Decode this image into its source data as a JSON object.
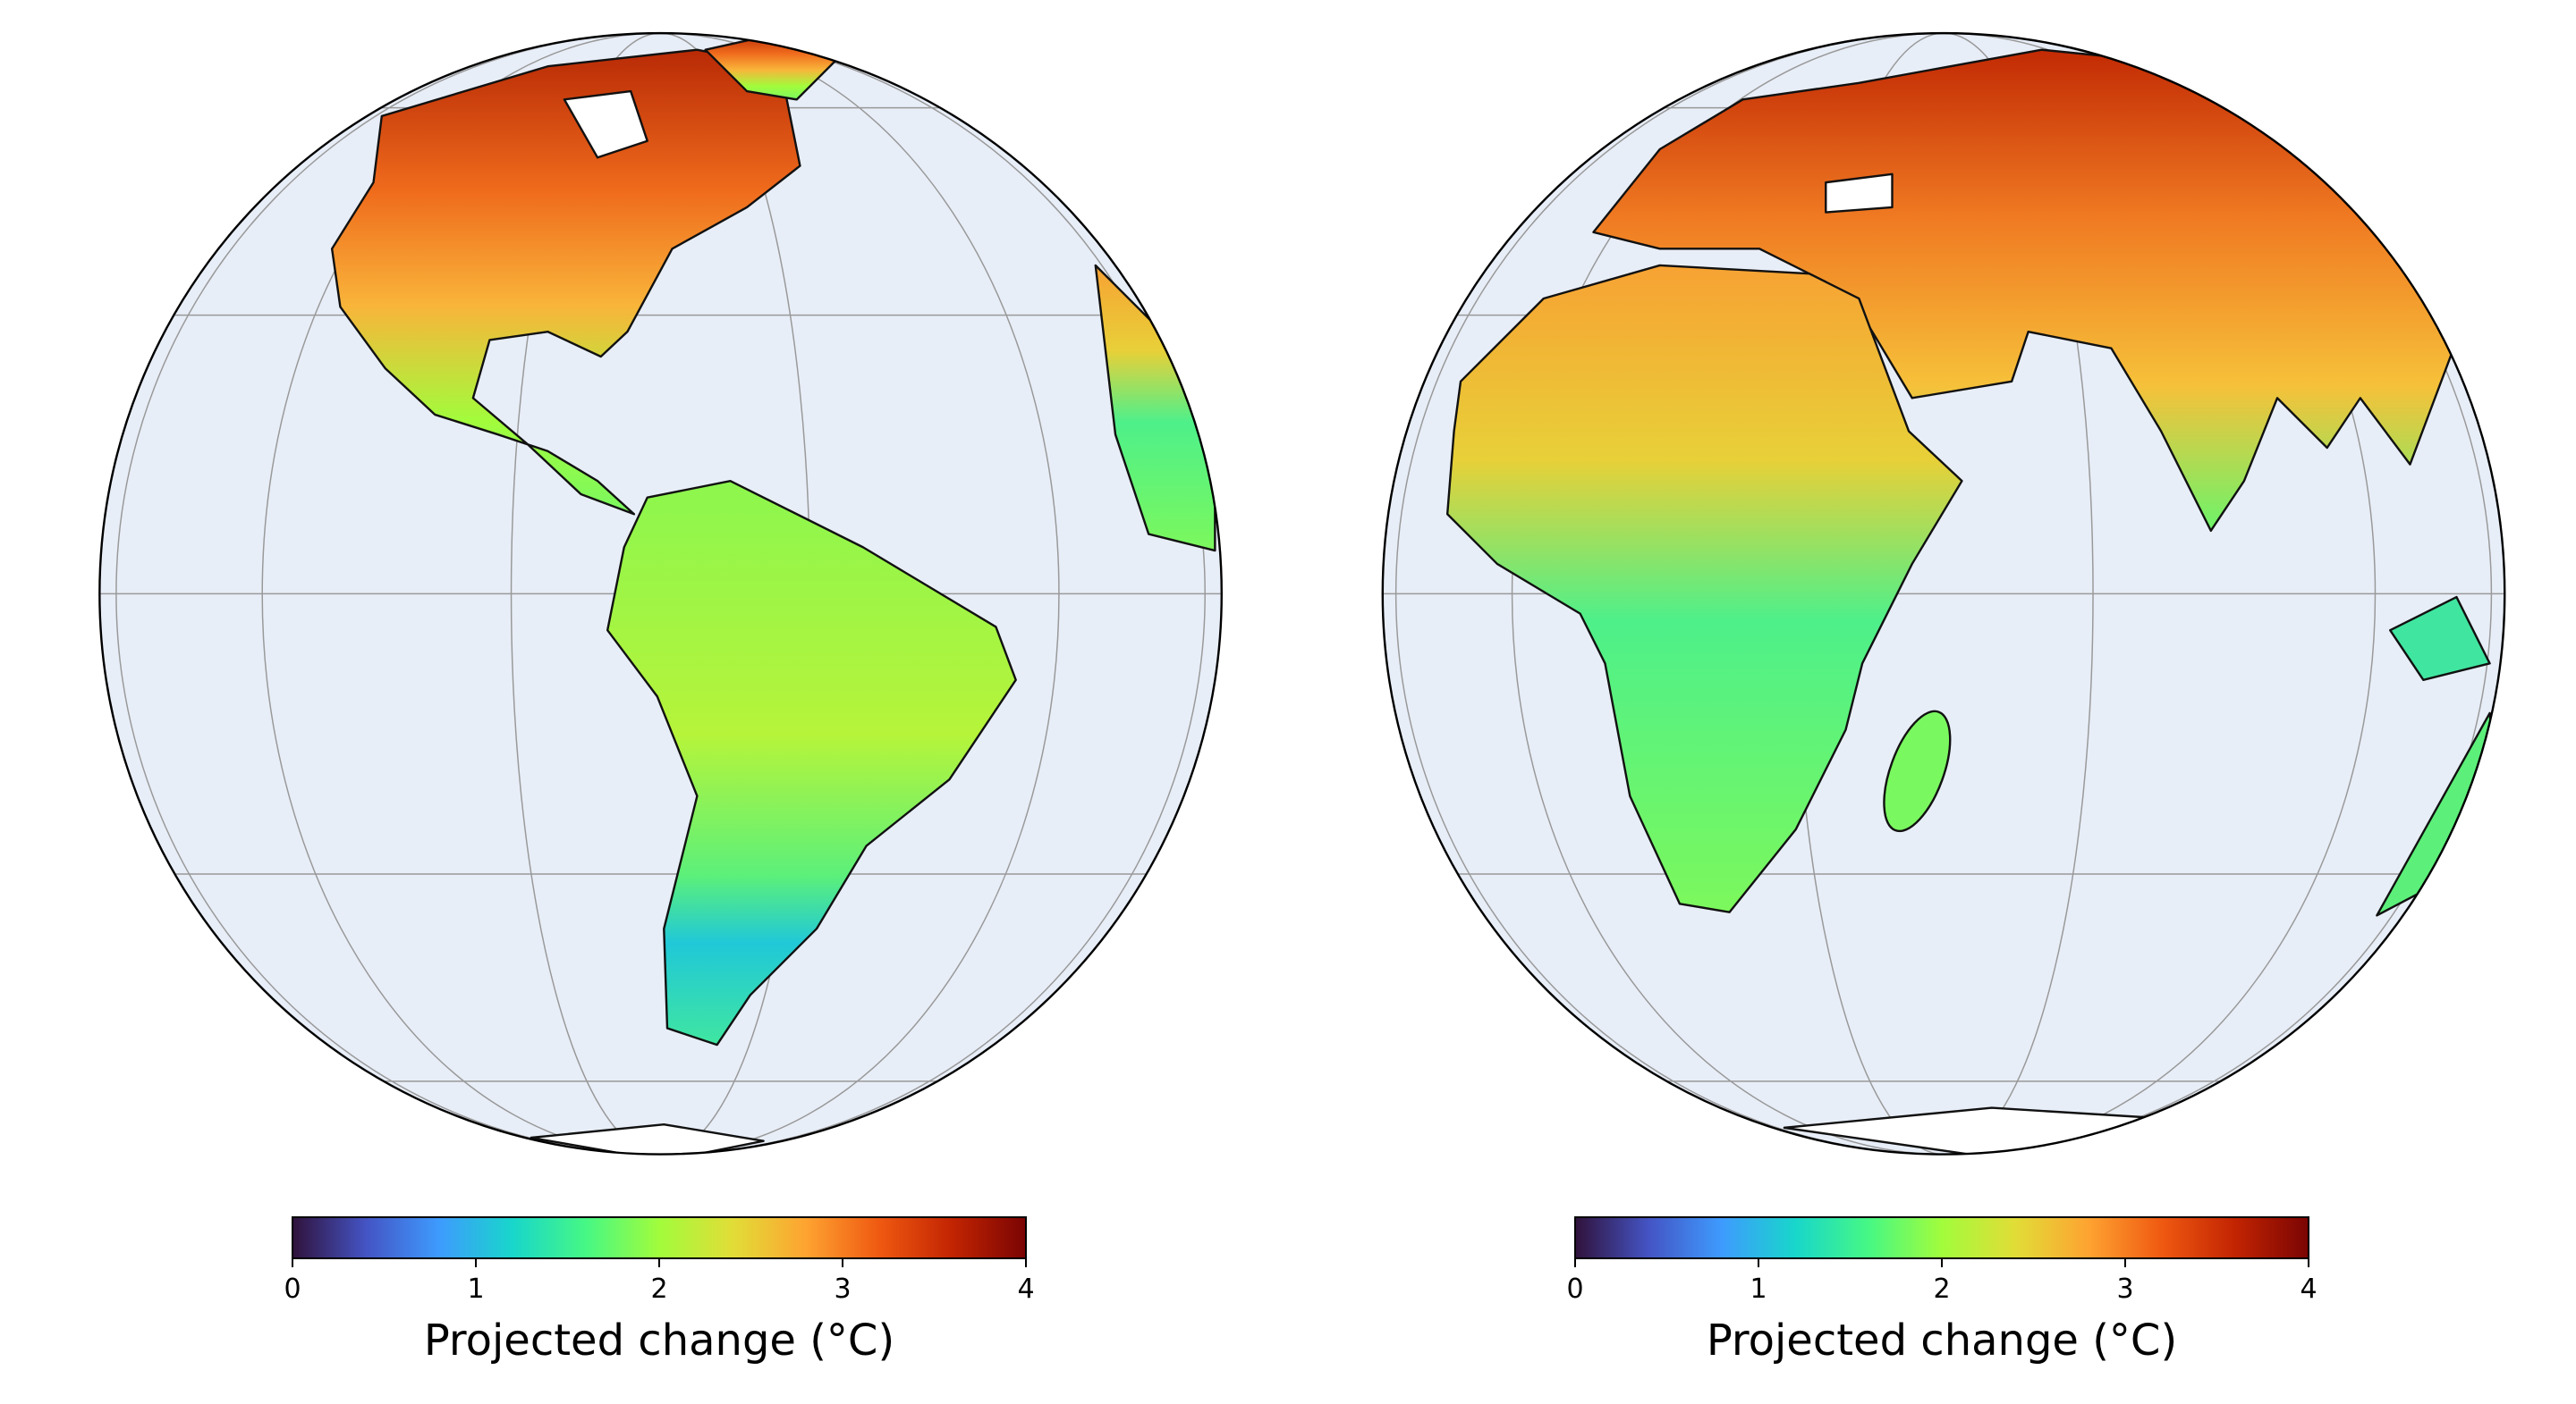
{
  "panels": [
    {
      "colorbar": {
        "label": "Projected change (°C)",
        "lim": [
          0,
          4
        ],
        "ticks": [
          0,
          1,
          2,
          3,
          4
        ],
        "colormap": [
          "#30123b",
          "#4454c4",
          "#3e9bfe",
          "#18d6cb",
          "#46f884",
          "#a2fc3c",
          "#e1dd37",
          "#fea331",
          "#ef5911",
          "#c22402",
          "#7a0403"
        ]
      }
    },
    {
      "colorbar": {
        "label": "Projected change (°C)",
        "lim": [
          0,
          4
        ],
        "ticks": [
          0,
          1,
          2,
          3,
          4
        ],
        "colormap": [
          "#30123b",
          "#4454c4",
          "#3e9bfe",
          "#18d6cb",
          "#46f884",
          "#a2fc3c",
          "#e1dd37",
          "#fea331",
          "#ef5911",
          "#c22402",
          "#7a0403"
        ]
      }
    }
  ]
}
